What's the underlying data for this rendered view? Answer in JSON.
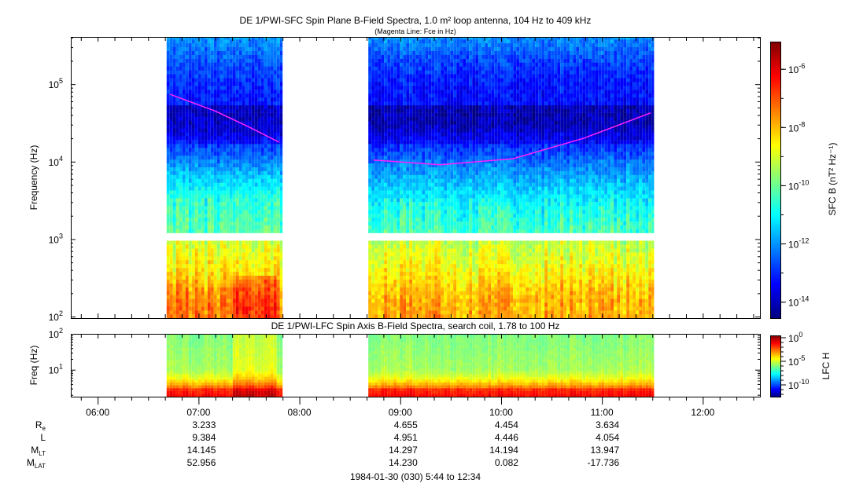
{
  "chart_data": [
    {
      "type": "heatmap",
      "title": "DE 1/PWI-SFC  Spin Plane B-Field Spectra, 1.0 m² loop antenna, 104 Hz to 409 kHz",
      "subtitle": "(Magenta Line: Fce in Hz)",
      "ylabel": "Frequency (Hz)",
      "yscale": "log",
      "ylim_log10": [
        1.98,
        5.61
      ],
      "yticks": [
        {
          "base": "10",
          "exp": "2"
        },
        {
          "base": "10",
          "exp": "3"
        },
        {
          "base": "10",
          "exp": "4"
        },
        {
          "base": "10",
          "exp": "5"
        }
      ],
      "ytick_values_log10": [
        2,
        3,
        4,
        5
      ],
      "data_gap_log10": [
        2.99,
        3.06
      ],
      "segments": [
        {
          "start": "06:41",
          "end": "07:50",
          "profile_log10_freq_vs_log10_power": [
            [
              2.0,
              -7.3
            ],
            [
              2.3,
              -7.6
            ],
            [
              2.6,
              -8.5
            ],
            [
              2.95,
              -9.0
            ],
            [
              3.1,
              -10.2
            ],
            [
              3.5,
              -10.6
            ],
            [
              3.7,
              -11.2
            ],
            [
              3.9,
              -11.8
            ],
            [
              4.1,
              -12.6
            ],
            [
              4.21,
              -12.8
            ],
            [
              4.23,
              -11.9
            ],
            [
              4.25,
              -13.3
            ],
            [
              4.4,
              -13.8
            ],
            [
              4.7,
              -14.0
            ],
            [
              4.75,
              -13.2
            ],
            [
              5.0,
              -13.0
            ],
            [
              5.3,
              -12.6
            ],
            [
              5.61,
              -12.0
            ]
          ]
        },
        {
          "start": "08:41",
          "end": "11:31",
          "profile_log10_freq_vs_log10_power": [
            [
              2.0,
              -7.8
            ],
            [
              2.3,
              -8.0
            ],
            [
              2.6,
              -8.6
            ],
            [
              2.95,
              -9.2
            ],
            [
              3.1,
              -10.4
            ],
            [
              3.4,
              -10.8
            ],
            [
              3.6,
              -11.3
            ],
            [
              3.9,
              -12.0
            ],
            [
              4.1,
              -12.7
            ],
            [
              4.21,
              -13.0
            ],
            [
              4.23,
              -11.9
            ],
            [
              4.25,
              -13.4
            ],
            [
              4.5,
              -14.1
            ],
            [
              4.72,
              -14.1
            ],
            [
              4.75,
              -13.3
            ],
            [
              5.0,
              -13.2
            ],
            [
              5.3,
              -12.8
            ],
            [
              5.61,
              -12.0
            ]
          ]
        }
      ],
      "fce_line": {
        "color": "#ff22ff",
        "segments": [
          [
            [
              "06:43",
              74000
            ],
            [
              "07:10",
              45000
            ],
            [
              "07:30",
              28000
            ],
            [
              "07:48",
              17800
            ]
          ],
          [
            [
              "08:44",
              10500
            ],
            [
              "09:24",
              9100
            ],
            [
              "10:07",
              10900
            ],
            [
              "10:49",
              20000
            ],
            [
              "11:29",
              42600
            ]
          ]
        ]
      },
      "colorbar": {
        "label": "SFC B (nT² Hz⁻¹)",
        "scale": "log",
        "range_log10": [
          -14.55,
          -5.05
        ],
        "ticks": [
          {
            "base": "10",
            "exp": "-6",
            "v": -6
          },
          {
            "base": "10",
            "exp": "-8",
            "v": -8
          },
          {
            "base": "10",
            "exp": "-10",
            "v": -10
          },
          {
            "base": "10",
            "exp": "-12",
            "v": -12
          },
          {
            "base": "10",
            "exp": "-14",
            "v": -14
          }
        ],
        "colormap": "rainbow"
      }
    },
    {
      "type": "heatmap",
      "title": "DE 1/PWI-LFC  Spin Axis B-Field Spectra, search coil, 1.78 to 100 Hz",
      "ylabel": "Freq (Hz)",
      "yscale": "log",
      "ylim_log10": [
        0.25,
        2.0
      ],
      "yticks": [
        {
          "base": "10",
          "exp": "1",
          "v": 1
        },
        {
          "base": "10",
          "exp": "2",
          "v": 2
        }
      ],
      "segments": [
        {
          "start": "06:41",
          "end": "07:50",
          "profile_log10_freq_vs_log10_power": [
            [
              0.25,
              -1.0
            ],
            [
              0.45,
              -1.6
            ],
            [
              0.55,
              -3.0
            ],
            [
              0.75,
              -4.5
            ],
            [
              1.0,
              -5.5
            ],
            [
              2.0,
              -6.0
            ]
          ]
        },
        {
          "start": "08:41",
          "end": "11:31",
          "profile_log10_freq_vs_log10_power": [
            [
              0.25,
              -1.0
            ],
            [
              0.45,
              -1.6
            ],
            [
              0.55,
              -3.0
            ],
            [
              0.75,
              -4.5
            ],
            [
              1.0,
              -5.5
            ],
            [
              2.0,
              -6.0
            ]
          ]
        }
      ],
      "colorbar": {
        "label": "LFC H",
        "scale": "log",
        "range_log10": [
          -12.5,
          0.5
        ],
        "ticks": [
          {
            "base": "10",
            "exp": "0",
            "v": 0
          },
          {
            "base": "10",
            "exp": "-5",
            "v": -5
          },
          {
            "base": "10",
            "exp": "-10",
            "v": -10
          }
        ],
        "colormap": "rainbow"
      }
    }
  ],
  "x_axis": {
    "range": [
      "05:44",
      "12:34"
    ],
    "ticks": [
      "06:00",
      "07:00",
      "08:00",
      "09:00",
      "10:00",
      "11:00",
      "12:00"
    ],
    "caption": "1984-01-30 (030) 5:44 to 12:34"
  },
  "ephemeris": {
    "columns": [
      "07:00",
      "09:00",
      "10:00",
      "11:00"
    ],
    "rows": [
      {
        "label": "R",
        "sub": "e",
        "values": [
          "3.233",
          "4.655",
          "4.454",
          "3.634"
        ]
      },
      {
        "label": "L",
        "sub": "",
        "values": [
          "9.384",
          "4.951",
          "4.446",
          "4.054"
        ]
      },
      {
        "label": "M",
        "sub": "LT",
        "values": [
          "14.145",
          "14.297",
          "14.194",
          "13.947"
        ]
      },
      {
        "label": "M",
        "sub": "LAT",
        "values": [
          "52.956",
          "14.230",
          "0.082",
          "-17.736"
        ]
      }
    ]
  }
}
